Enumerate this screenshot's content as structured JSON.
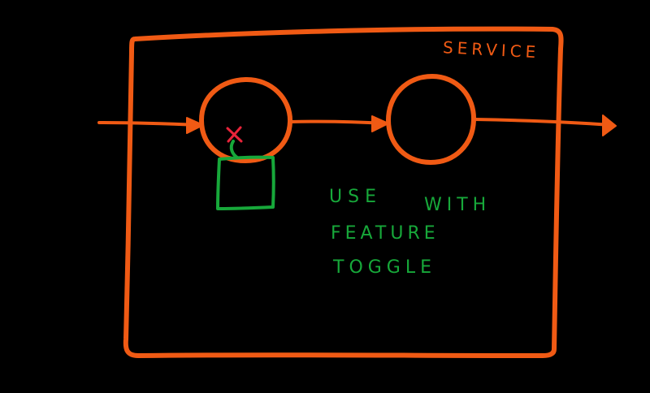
{
  "colors": {
    "background": "#000000",
    "service_stroke": "#f05a14",
    "toggle_stroke": "#17a83a",
    "toggle_text": "#17a83a",
    "switch_mark": "#e8243a"
  },
  "service": {
    "label": "SERVICE"
  },
  "annotation": {
    "line1_a": "USE",
    "line1_b": "WITH",
    "line2": "FEATURE",
    "line3": "TOGGLE"
  }
}
